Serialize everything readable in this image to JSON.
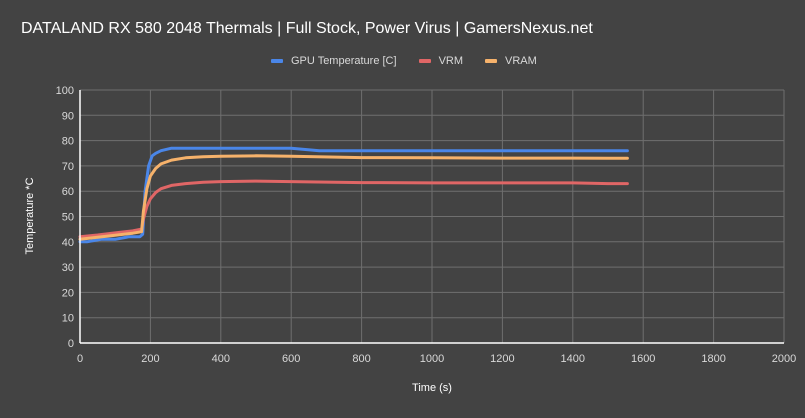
{
  "chart_data": {
    "type": "line",
    "title": "DATALAND RX 580 2048 Thermals | Full Stock, Power Virus | GamersNexus.net",
    "xlabel": "Time (s)",
    "ylabel": "Temperature *C",
    "xlim": [
      0,
      2000
    ],
    "ylim": [
      0,
      100
    ],
    "xticks": [
      0,
      200,
      400,
      600,
      800,
      1000,
      1200,
      1400,
      1600,
      1800,
      2000
    ],
    "yticks": [
      0,
      10,
      20,
      30,
      40,
      50,
      60,
      70,
      80,
      90,
      100
    ],
    "grid": true,
    "legend_position": "top",
    "series": [
      {
        "name": "GPU Temperature [C]",
        "color": "#4a86e8",
        "x": [
          0,
          20,
          60,
          100,
          140,
          170,
          178,
          185,
          195,
          205,
          215,
          230,
          260,
          300,
          400,
          500,
          600,
          680,
          800,
          1000,
          1200,
          1400,
          1450,
          1500,
          1555
        ],
        "y": [
          40,
          40,
          41,
          41,
          42,
          42,
          43,
          60,
          70,
          74,
          75,
          76,
          77,
          77,
          77,
          77,
          77,
          76,
          76,
          76,
          76,
          76,
          76,
          76,
          76
        ]
      },
      {
        "name": "VRM",
        "color": "#e06666",
        "x": [
          0,
          50,
          100,
          150,
          175,
          180,
          190,
          200,
          215,
          230,
          260,
          300,
          350,
          400,
          500,
          600,
          800,
          1000,
          1200,
          1400,
          1500,
          1555
        ],
        "y": [
          42,
          42.7,
          43.5,
          44.3,
          45,
          49,
          54,
          57,
          59.5,
          61,
          62.3,
          63,
          63.5,
          63.8,
          64,
          63.8,
          63.4,
          63.3,
          63.3,
          63.3,
          63,
          63
        ]
      },
      {
        "name": "VRAM",
        "color": "#f6b26b",
        "x": [
          0,
          50,
          100,
          150,
          175,
          180,
          190,
          200,
          215,
          230,
          260,
          300,
          350,
          400,
          500,
          600,
          800,
          1000,
          1200,
          1400,
          1500,
          1555
        ],
        "y": [
          41,
          41.8,
          42.6,
          43.4,
          44,
          52,
          61,
          66,
          69,
          70.8,
          72.3,
          73.2,
          73.6,
          73.8,
          74,
          73.8,
          73.3,
          73.2,
          73.1,
          73.1,
          73,
          73
        ]
      }
    ]
  },
  "header": {
    "title": "DATALAND RX 580 2048 Thermals | Full Stock, Power Virus | GamersNexus.net"
  },
  "legend": [
    {
      "label": "GPU Temperature [C]",
      "color": "#4a86e8"
    },
    {
      "label": "VRM",
      "color": "#e06666"
    },
    {
      "label": "VRAM",
      "color": "#f6b26b"
    }
  ],
  "axes": {
    "xlabel": "Time (s)",
    "ylabel": "Temperature *C"
  }
}
